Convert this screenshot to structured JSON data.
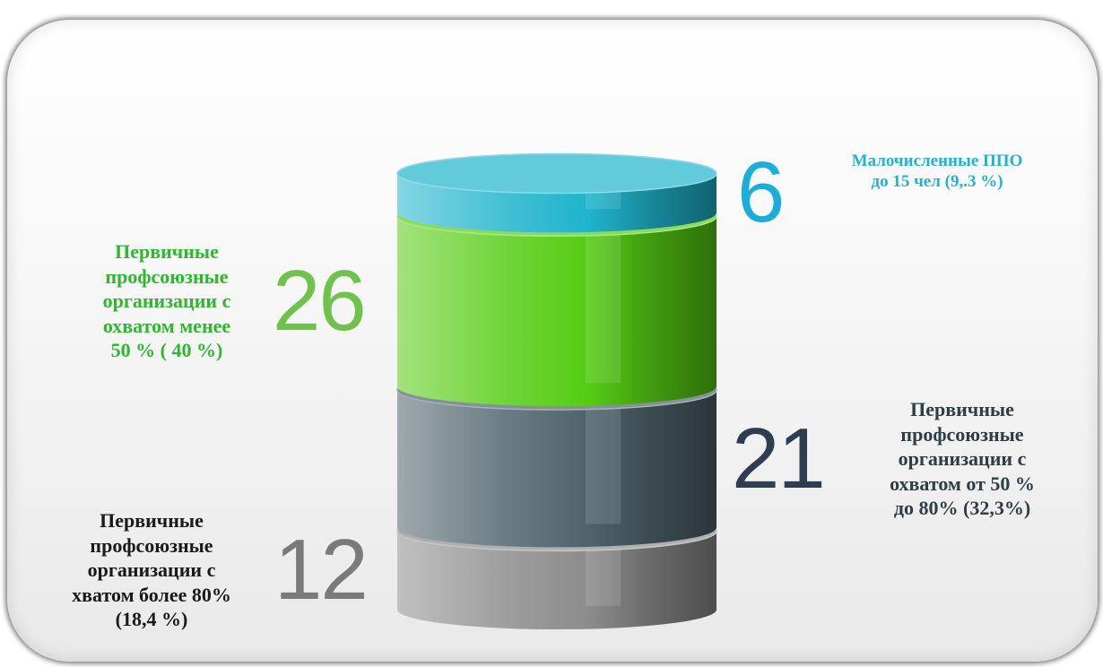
{
  "chart_data": {
    "type": "bar",
    "categories": [
      "Первичные\nпрофсоюзные\nорганизации с\nхватом более 80%\n(18,4 %)",
      "Первичные\nпрофсоюзные\nорганизации с\nохватом от 50 %\nдо 80% (32,3%)",
      "Первичные\nпрофсоюзные\nорганизации с\nохватом менее\n50 % ( 40 %)",
      "Малочисленные ППО\nдо 15 чел (9,.3 %)"
    ],
    "values": [
      12,
      21,
      26,
      6
    ],
    "value_labels": [
      "12",
      "21",
      "26",
      "6"
    ],
    "colors": [
      "#8c8c8c",
      "#4f636c",
      "#55cc14",
      "#1fb4cc"
    ],
    "label_colors": [
      "#1a1a1a",
      "#2f3d44",
      "#2eb82e",
      "#21b3d6"
    ],
    "number_colors": [
      "#7a7a7a",
      "#2f3d50",
      "#6fc24a",
      "#1aaed8"
    ]
  }
}
